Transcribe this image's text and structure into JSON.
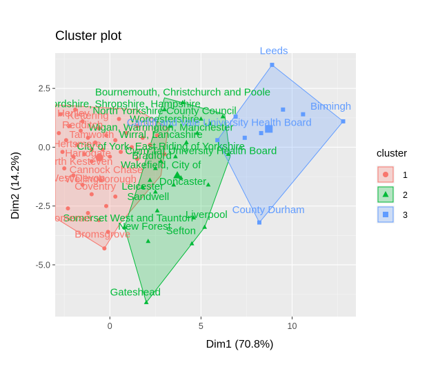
{
  "chart_data": {
    "type": "scatter",
    "title": "Cluster plot",
    "xlabel": "Dim1 (70.8%)",
    "ylabel": "Dim2 (14.2%)",
    "xlim": [
      -3.0,
      13.5
    ],
    "ylim": [
      -7.2,
      4.0
    ],
    "xticks": [
      0,
      5,
      10
    ],
    "yticks": [
      2.5,
      0.0,
      -2.5,
      -5.0
    ],
    "ytick_labels": [
      "2.5",
      "0.0",
      "-2.5",
      "-5.0"
    ],
    "grid": true,
    "legend": {
      "title": "cluster",
      "position": "right",
      "entries": [
        "1",
        "2",
        "3"
      ]
    },
    "colors": {
      "1": "#F8766D",
      "2": "#00BA38",
      "3": "#619CFF"
    },
    "series": [
      {
        "name": "1",
        "points": [
          {
            "x": -2.8,
            "y": 0.6
          },
          {
            "x": -2.6,
            "y": -0.2
          },
          {
            "x": -2.4,
            "y": 0.3
          },
          {
            "x": -2.2,
            "y": 0.9
          },
          {
            "x": -2.0,
            "y": -0.4
          },
          {
            "x": -1.8,
            "y": 0.1
          },
          {
            "x": -1.6,
            "y": 0.7
          },
          {
            "x": -1.4,
            "y": -0.3
          },
          {
            "x": -1.2,
            "y": 0.4
          },
          {
            "x": -1.0,
            "y": -0.6
          },
          {
            "x": -0.8,
            "y": 0.2
          },
          {
            "x": -0.6,
            "y": 0.8
          },
          {
            "x": -0.4,
            "y": -0.1
          },
          {
            "x": -0.2,
            "y": 0.5
          },
          {
            "x": 0.0,
            "y": -0.4
          },
          {
            "x": 0.3,
            "y": 0.3
          },
          {
            "x": 0.6,
            "y": -0.2
          },
          {
            "x": 0.9,
            "y": 0.6
          },
          {
            "x": 1.2,
            "y": 0.0
          },
          {
            "x": 1.5,
            "y": -0.5
          },
          {
            "x": 1.8,
            "y": 0.4
          },
          {
            "x": 2.2,
            "y": 0.1
          },
          {
            "x": 2.6,
            "y": 0.5
          },
          {
            "x": 3.0,
            "y": -0.3
          },
          {
            "x": -2.5,
            "y": -0.9
          },
          {
            "x": -2.0,
            "y": -1.2
          },
          {
            "x": -1.5,
            "y": -1.6
          },
          {
            "x": -1.0,
            "y": -2.0
          },
          {
            "x": -0.5,
            "y": -1.4
          },
          {
            "x": -2.3,
            "y": -2.6
          },
          {
            "x": -1.2,
            "y": -2.8
          },
          {
            "x": -0.2,
            "y": -2.5
          },
          {
            "x": 0.3,
            "y": -2.1
          },
          {
            "x": -0.6,
            "y": -3.1
          },
          {
            "x": -0.1,
            "y": -3.6
          },
          {
            "x": -0.3,
            "y": -4.3
          },
          {
            "x": -1.0,
            "y": -0.1
          },
          {
            "x": -2.7,
            "y": 1.4
          },
          {
            "x": -1.9,
            "y": 1.6
          },
          {
            "x": 0.5,
            "y": 1.2
          },
          {
            "x": 1.5,
            "y": 0.9
          },
          {
            "x": -1.5,
            "y": 1.1
          }
        ],
        "hull": [
          {
            "x": -3.0,
            "y": 1.8
          },
          {
            "x": 1.5,
            "y": 1.6
          },
          {
            "x": 3.2,
            "y": 0.8
          },
          {
            "x": 2.8,
            "y": -1.2
          },
          {
            "x": 0.6,
            "y": -3.2
          },
          {
            "x": -0.3,
            "y": -4.3
          },
          {
            "x": -3.0,
            "y": -3.0
          }
        ]
      },
      {
        "name": "2",
        "points": [
          {
            "x": 2.0,
            "y": -6.6
          },
          {
            "x": 4.5,
            "y": -4.1
          },
          {
            "x": 5.2,
            "y": -3.4
          },
          {
            "x": 4.6,
            "y": -3.0
          },
          {
            "x": 2.6,
            "y": -2.7
          },
          {
            "x": 3.5,
            "y": -1.6
          },
          {
            "x": 3.9,
            "y": -1.3
          },
          {
            "x": 2.5,
            "y": -1.9
          },
          {
            "x": 2.1,
            "y": -4.0
          },
          {
            "x": 0.8,
            "y": -3.4
          },
          {
            "x": 1.8,
            "y": -1.7
          },
          {
            "x": 2.2,
            "y": -1.4
          },
          {
            "x": 5.4,
            "y": -1.6
          },
          {
            "x": 2.8,
            "y": -0.6
          },
          {
            "x": 3.6,
            "y": -0.4
          },
          {
            "x": 4.2,
            "y": 0.2
          },
          {
            "x": 4.8,
            "y": 0.6
          },
          {
            "x": 5.5,
            "y": 1.0
          },
          {
            "x": 6.2,
            "y": 1.3
          },
          {
            "x": 3.0,
            "y": 1.6
          },
          {
            "x": 4.0,
            "y": 1.9
          },
          {
            "x": 5.0,
            "y": 1.2
          },
          {
            "x": 6.5,
            "y": -0.3
          },
          {
            "x": 2.5,
            "y": -0.9
          },
          {
            "x": 3.3,
            "y": 0.9
          }
        ],
        "hull": [
          {
            "x": 0.8,
            "y": -3.4
          },
          {
            "x": 1.6,
            "y": -1.5
          },
          {
            "x": 3.0,
            "y": 2.1
          },
          {
            "x": 6.3,
            "y": 1.4
          },
          {
            "x": 6.6,
            "y": -0.4
          },
          {
            "x": 5.2,
            "y": -3.4
          },
          {
            "x": 4.5,
            "y": -4.1
          },
          {
            "x": 2.0,
            "y": -6.6
          }
        ]
      },
      {
        "name": "3",
        "points": [
          {
            "x": 8.9,
            "y": 3.5
          },
          {
            "x": 12.8,
            "y": 1.1
          },
          {
            "x": 8.2,
            "y": -3.2
          },
          {
            "x": 5.9,
            "y": 0.3
          },
          {
            "x": 7.4,
            "y": 0.4
          },
          {
            "x": 8.3,
            "y": 0.6
          },
          {
            "x": 10.6,
            "y": 1.4
          },
          {
            "x": 6.9,
            "y": 1.3
          },
          {
            "x": 9.5,
            "y": 1.6
          }
        ],
        "hull": [
          {
            "x": 8.9,
            "y": 3.5
          },
          {
            "x": 12.8,
            "y": 1.1
          },
          {
            "x": 8.2,
            "y": -3.2
          },
          {
            "x": 5.9,
            "y": 0.3
          }
        ]
      }
    ],
    "labels": [
      {
        "text": "Leeds",
        "x": 9.0,
        "y": 3.95,
        "series": "3"
      },
      {
        "text": "Birmingh",
        "x": 11.0,
        "y": 1.6,
        "series": "3",
        "anchor": "start"
      },
      {
        "text": "Bournemouth, Christchurch and Poole",
        "x": 4.0,
        "y": 2.2,
        "series": "2"
      },
      {
        "text": "Herefordshire, Shropshire, Hampshire",
        "x": 0.2,
        "y": 1.7,
        "series": "2"
      },
      {
        "text": "North Yorkshire County Council",
        "x": 3.0,
        "y": 1.4,
        "series": "2"
      },
      {
        "text": "Worcestershire",
        "x": 3.0,
        "y": 1.05,
        "series": "2"
      },
      {
        "text": "Wigan, Warrington, Manchester",
        "x": 2.8,
        "y": 0.7,
        "series": "2"
      },
      {
        "text": "Wirral, Lancashire",
        "x": 2.8,
        "y": 0.4,
        "series": "2"
      },
      {
        "text": "Cardiff and Vale University Health Board",
        "x": 6.0,
        "y": 0.9,
        "series": "3"
      },
      {
        "text": "Cwm Taf University Health Board",
        "x": 5.0,
        "y": -0.3,
        "series": "2"
      },
      {
        "text": "City of York, East Riding of Yorkshire",
        "x": 2.8,
        "y": -0.1,
        "series": "2"
      },
      {
        "text": "Bradford",
        "x": 2.3,
        "y": -0.5,
        "series": "2"
      },
      {
        "text": "Wakefield, City of",
        "x": 2.8,
        "y": -0.9,
        "series": "2"
      },
      {
        "text": "Doncaster",
        "x": 4.0,
        "y": -1.6,
        "series": "2"
      },
      {
        "text": "Leicester",
        "x": 1.8,
        "y": -1.8,
        "series": "2"
      },
      {
        "text": "Sandwell",
        "x": 2.1,
        "y": -2.25,
        "series": "2"
      },
      {
        "text": "Liverpool",
        "x": 5.3,
        "y": -3.0,
        "series": "2"
      },
      {
        "text": "Somerset West and Taunton",
        "x": 1.0,
        "y": -3.15,
        "series": "2"
      },
      {
        "text": "New Forest",
        "x": 1.9,
        "y": -3.5,
        "series": "2"
      },
      {
        "text": "Sefton",
        "x": 3.9,
        "y": -3.7,
        "series": "2"
      },
      {
        "text": "Gateshead",
        "x": 1.4,
        "y": -6.3,
        "series": "2"
      },
      {
        "text": "County Durham",
        "x": 8.7,
        "y": -2.8,
        "series": "3"
      },
      {
        "text": "Somerset",
        "x": -2.2,
        "y": -3.15,
        "series": "1"
      },
      {
        "text": "Bromsgrove",
        "x": -0.4,
        "y": -3.85,
        "series": "1"
      },
      {
        "text": "Coventry",
        "x": -0.8,
        "y": -1.8,
        "series": "1"
      },
      {
        "text": "Wellingborough",
        "x": -0.5,
        "y": -1.5,
        "series": "1"
      },
      {
        "text": "West Devon",
        "x": -1.8,
        "y": -1.45,
        "series": "1"
      },
      {
        "text": "Cannock Chase",
        "x": -0.2,
        "y": -1.1,
        "series": "1"
      },
      {
        "text": "North Kesteven",
        "x": -1.8,
        "y": -0.75,
        "series": "1"
      },
      {
        "text": "Harrogate",
        "x": -1.2,
        "y": -0.4,
        "series": "1"
      },
      {
        "text": "Hertsmere",
        "x": -1.8,
        "y": 0.0,
        "series": "1"
      },
      {
        "text": "Tamworth",
        "x": -1.0,
        "y": 0.4,
        "series": "1"
      },
      {
        "text": "Redditch",
        "x": -1.5,
        "y": 0.8,
        "series": "1"
      },
      {
        "text": "Kettering",
        "x": -1.2,
        "y": 1.2,
        "series": "1"
      },
      {
        "text": "Henley",
        "x": -2.0,
        "y": 1.3,
        "series": "1"
      }
    ]
  }
}
